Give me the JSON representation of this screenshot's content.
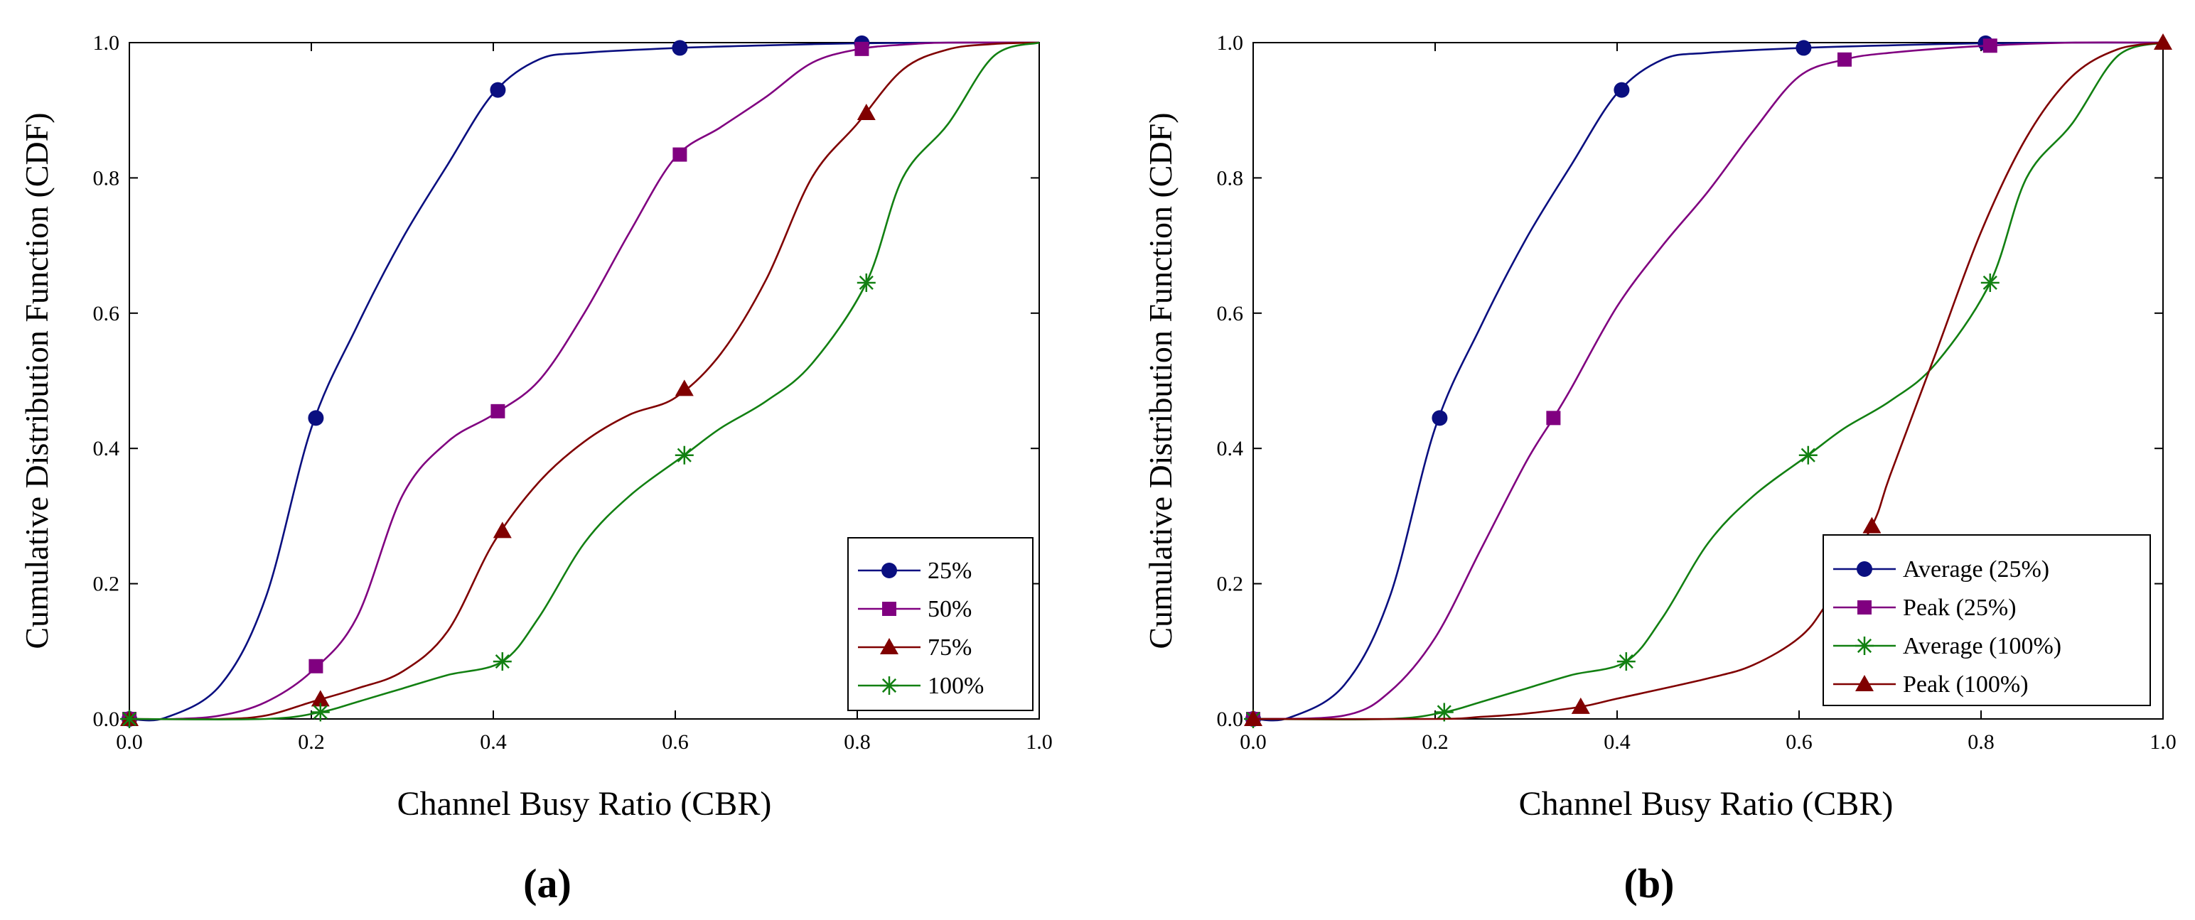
{
  "colors": {
    "s25": "#0a0f80",
    "s50": "#800080",
    "s75": "#800000",
    "s100": "#128012",
    "axis": "#000000"
  },
  "chart_data": [
    {
      "panel_label": "(a)",
      "type": "line",
      "xlabel": "Channel Busy Ratio (CBR)",
      "ylabel": "Cumulative Distribution Function (CDF)",
      "xlim": [
        0,
        1
      ],
      "ylim": [
        0,
        1
      ],
      "xticks": [
        "0.0",
        "0.2",
        "0.4",
        "0.6",
        "0.8",
        "1.0"
      ],
      "yticks": [
        "0.0",
        "0.2",
        "0.4",
        "0.6",
        "0.8",
        "1.0"
      ],
      "legend": "bottom-right",
      "grid": false,
      "series": [
        {
          "name": "25%",
          "color_key": "s25",
          "marker": "circle",
          "x": [
            0.0,
            0.04,
            0.1,
            0.15,
            0.2,
            0.25,
            0.3,
            0.35,
            0.4,
            0.45,
            0.5,
            0.6,
            0.7,
            0.8,
            0.9,
            1.0
          ],
          "y": [
            0.0,
            0.002,
            0.05,
            0.18,
            0.43,
            0.58,
            0.71,
            0.82,
            0.925,
            0.975,
            0.985,
            0.992,
            0.996,
            0.999,
            1.0,
            1.0
          ],
          "markers_x": [
            0.0,
            0.205,
            0.405,
            0.605,
            0.805
          ]
        },
        {
          "name": "50%",
          "color_key": "s50",
          "marker": "square",
          "x": [
            0.0,
            0.05,
            0.1,
            0.15,
            0.2,
            0.25,
            0.3,
            0.35,
            0.4,
            0.45,
            0.5,
            0.55,
            0.6,
            0.65,
            0.7,
            0.75,
            0.8,
            0.85,
            0.9,
            1.0
          ],
          "y": [
            0.0,
            0.0,
            0.005,
            0.025,
            0.07,
            0.15,
            0.33,
            0.41,
            0.45,
            0.5,
            0.6,
            0.72,
            0.83,
            0.875,
            0.92,
            0.97,
            0.99,
            0.997,
            1.0,
            1.0
          ],
          "markers_x": [
            0.0,
            0.205,
            0.405,
            0.605,
            0.805
          ]
        },
        {
          "name": "75%",
          "color_key": "s75",
          "marker": "triangle",
          "x": [
            0.0,
            0.1,
            0.15,
            0.2,
            0.25,
            0.3,
            0.35,
            0.4,
            0.45,
            0.5,
            0.55,
            0.6,
            0.65,
            0.7,
            0.75,
            0.8,
            0.85,
            0.9,
            0.95,
            1.0
          ],
          "y": [
            0.0,
            0.0,
            0.005,
            0.025,
            0.045,
            0.07,
            0.13,
            0.26,
            0.35,
            0.41,
            0.45,
            0.475,
            0.54,
            0.65,
            0.8,
            0.88,
            0.96,
            0.99,
            0.998,
            1.0
          ],
          "markers_x": [
            0.0,
            0.21,
            0.41,
            0.61,
            0.81
          ]
        },
        {
          "name": "100%",
          "color_key": "s100",
          "marker": "asterisk",
          "x": [
            0.0,
            0.15,
            0.21,
            0.25,
            0.3,
            0.35,
            0.41,
            0.45,
            0.5,
            0.55,
            0.61,
            0.65,
            0.7,
            0.75,
            0.81,
            0.85,
            0.9,
            0.95,
            1.0
          ],
          "y": [
            0.0,
            0.0,
            0.01,
            0.025,
            0.045,
            0.065,
            0.085,
            0.15,
            0.26,
            0.33,
            0.39,
            0.43,
            0.47,
            0.525,
            0.645,
            0.8,
            0.88,
            0.98,
            1.0
          ],
          "markers_x": [
            0.0,
            0.21,
            0.41,
            0.61,
            0.81
          ]
        }
      ]
    },
    {
      "panel_label": "(b)",
      "type": "line",
      "xlabel": "Channel Busy Ratio (CBR)",
      "ylabel": "Cumulative Distribution Function (CDF)",
      "xlim": [
        0,
        1
      ],
      "ylim": [
        0,
        1
      ],
      "xticks": [
        "0.0",
        "0.2",
        "0.4",
        "0.6",
        "0.8",
        "1.0"
      ],
      "yticks": [
        "0.0",
        "0.2",
        "0.4",
        "0.6",
        "0.8",
        "1.0"
      ],
      "legend": "bottom-right",
      "grid": false,
      "series": [
        {
          "name": "Average (25%)",
          "color_key": "s25",
          "marker": "circle",
          "x": [
            0.0,
            0.04,
            0.1,
            0.15,
            0.2,
            0.25,
            0.3,
            0.35,
            0.4,
            0.45,
            0.5,
            0.6,
            0.7,
            0.8,
            0.9,
            1.0
          ],
          "y": [
            0.0,
            0.002,
            0.05,
            0.18,
            0.43,
            0.58,
            0.71,
            0.82,
            0.925,
            0.975,
            0.985,
            0.992,
            0.996,
            0.999,
            1.0,
            1.0
          ],
          "markers_x": [
            0.0,
            0.205,
            0.405,
            0.605,
            0.805
          ]
        },
        {
          "name": "Peak (25%)",
          "color_key": "s50",
          "marker": "square",
          "x": [
            0.0,
            0.1,
            0.15,
            0.2,
            0.25,
            0.3,
            0.33,
            0.35,
            0.4,
            0.45,
            0.5,
            0.55,
            0.6,
            0.65,
            0.7,
            0.8,
            0.9,
            1.0
          ],
          "y": [
            0.0,
            0.005,
            0.04,
            0.12,
            0.25,
            0.38,
            0.445,
            0.49,
            0.61,
            0.7,
            0.78,
            0.87,
            0.95,
            0.975,
            0.985,
            0.995,
            1.0,
            1.0
          ],
          "markers_x": [
            0.0,
            0.33,
            0.65,
            0.81
          ]
        },
        {
          "name": "Average (100%)",
          "color_key": "s100",
          "marker": "asterisk",
          "x": [
            0.0,
            0.15,
            0.21,
            0.25,
            0.3,
            0.35,
            0.41,
            0.45,
            0.5,
            0.55,
            0.61,
            0.65,
            0.7,
            0.75,
            0.81,
            0.85,
            0.9,
            0.95,
            1.0
          ],
          "y": [
            0.0,
            0.0,
            0.01,
            0.025,
            0.045,
            0.065,
            0.085,
            0.15,
            0.26,
            0.33,
            0.39,
            0.43,
            0.47,
            0.525,
            0.645,
            0.8,
            0.88,
            0.98,
            1.0
          ],
          "markers_x": [
            0.0,
            0.21,
            0.41,
            0.61,
            0.81
          ]
        },
        {
          "name": "Peak (100%)",
          "color_key": "s75",
          "marker": "triangle",
          "x": [
            0.0,
            0.2,
            0.25,
            0.3,
            0.36,
            0.4,
            0.5,
            0.55,
            0.6,
            0.63,
            0.68,
            0.7,
            0.75,
            0.8,
            0.85,
            0.9,
            0.95,
            1.0
          ],
          "y": [
            0.0,
            0.0,
            0.003,
            0.008,
            0.018,
            0.03,
            0.06,
            0.08,
            0.12,
            0.17,
            0.285,
            0.36,
            0.54,
            0.72,
            0.86,
            0.95,
            0.99,
            1.0
          ],
          "markers_x": [
            0.0,
            0.36,
            0.68,
            1.0
          ]
        }
      ]
    }
  ]
}
